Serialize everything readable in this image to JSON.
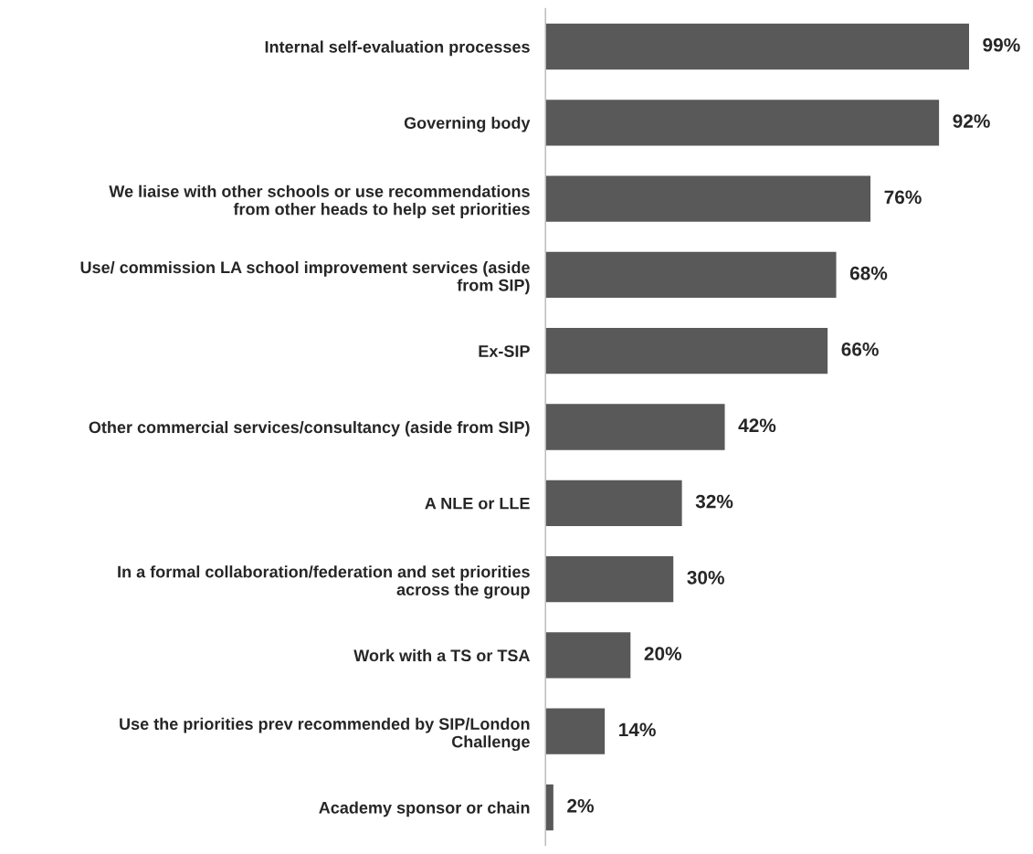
{
  "chart_data": {
    "type": "bar",
    "orientation": "horizontal",
    "categories": [
      "Internal self-evaluation processes",
      "Governing body",
      "We liaise with other schools or use recommendations\nfrom other heads to help set priorities",
      "Use/ commission LA school improvement services (aside\nfrom SIP)",
      "Ex-SIP",
      "Other commercial services/consultancy (aside from SIP)",
      "A NLE or LLE",
      "In a formal collaboration/federation and set priorities\nacross the group",
      "Work with a TS or TSA",
      "Use the priorities prev recommended by SIP/London\nChallenge",
      "Academy sponsor or chain"
    ],
    "values": [
      99,
      92,
      76,
      68,
      66,
      42,
      32,
      30,
      20,
      14,
      2
    ],
    "value_labels": [
      "99%",
      "92%",
      "76%",
      "68%",
      "66%",
      "42%",
      "32%",
      "30%",
      "20%",
      "14%",
      "2%"
    ],
    "color": "#595959",
    "grid": false,
    "legend": false,
    "tick_labels": "y"
  }
}
